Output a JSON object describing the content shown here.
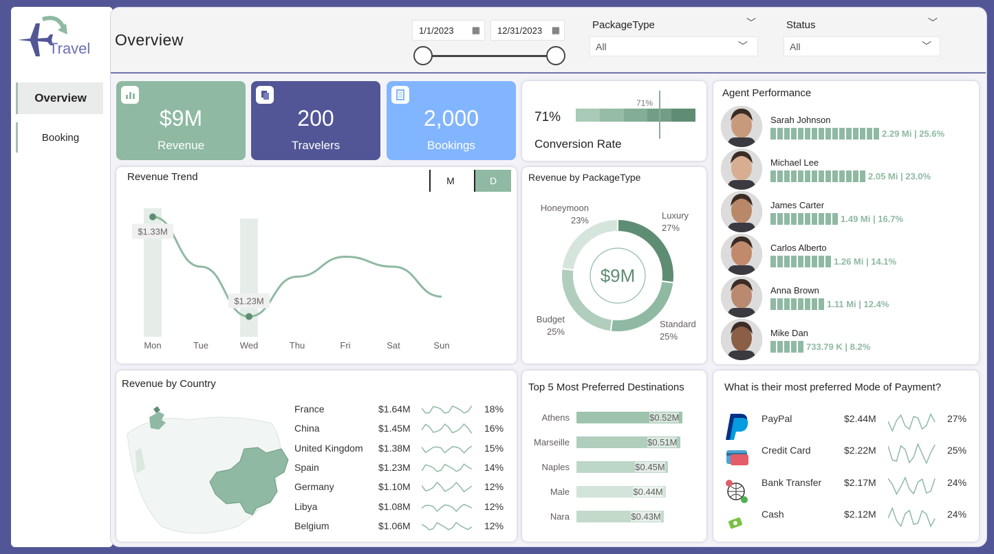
{
  "app": {
    "logo_text": "Travel",
    "page_title": "Overview"
  },
  "nav": [
    {
      "label": "Overview",
      "active": true
    },
    {
      "label": "Booking",
      "active": false
    }
  ],
  "filters": {
    "date_start": "1/1/2023",
    "date_end": "12/31/2023",
    "package_label": "PackageType",
    "package_value": "All",
    "status_label": "Status",
    "status_value": "All"
  },
  "kpis": [
    {
      "value": "$9M",
      "label": "Revenue",
      "color": "#8fb9a2"
    },
    {
      "value": "200",
      "label": "Travelers",
      "color": "#525696"
    },
    {
      "value": "2,000",
      "label": "Bookings",
      "color": "#82b5ff"
    }
  ],
  "conversion": {
    "value": "71%",
    "marker": "71%",
    "label": "Conversion Rate",
    "fraction": 0.71
  },
  "agent_performance": {
    "title": "Agent Performance",
    "agents": [
      {
        "name": "Sarah Johnson",
        "value": "2.29 Mi | 25.6%",
        "share": 25.6
      },
      {
        "name": "Michael Lee",
        "value": "2.05 Mi | 23.0%",
        "share": 23.0
      },
      {
        "name": "James Carter",
        "value": "1.49 Mi | 16.7%",
        "share": 16.7
      },
      {
        "name": "Carlos Alberto",
        "value": "1.26 Mi | 14.1%",
        "share": 14.1
      },
      {
        "name": "Anna Brown",
        "value": "1.11 Mi | 12.4%",
        "share": 12.4
      },
      {
        "name": "Mike Dan",
        "value": "733.79 K | 8.2%",
        "share": 8.2
      }
    ]
  },
  "revenue_trend": {
    "title": "Revenue Trend",
    "toggle": [
      "M",
      "D"
    ],
    "toggle_active": "D"
  },
  "revenue_by_package": {
    "title": "Revenue by PackageType",
    "center": "$9M",
    "slices": [
      {
        "name": "Luxury",
        "pct": "27%"
      },
      {
        "name": "Standard",
        "pct": "25%"
      },
      {
        "name": "Budget",
        "pct": "25%"
      },
      {
        "name": "Honeymoon",
        "pct": "23%"
      }
    ]
  },
  "revenue_by_country": {
    "title": "Revenue by Country",
    "rows": [
      {
        "country": "France",
        "revenue": "$1.64M",
        "pct": "18%"
      },
      {
        "country": "China",
        "revenue": "$1.45M",
        "pct": "16%"
      },
      {
        "country": "United Kingdom",
        "revenue": "$1.38M",
        "pct": "15%"
      },
      {
        "country": "Spain",
        "revenue": "$1.23M",
        "pct": "14%"
      },
      {
        "country": "Germany",
        "revenue": "$1.10M",
        "pct": "12%"
      },
      {
        "country": "Libya",
        "revenue": "$1.08M",
        "pct": "12%"
      },
      {
        "country": "Belgium",
        "revenue": "$1.06M",
        "pct": "12%"
      }
    ]
  },
  "top_destinations": {
    "title": "Top 5 Most Preferred Destinations",
    "rows": [
      {
        "city": "Athens",
        "value": "$0.52M",
        "num": 0.52
      },
      {
        "city": "Marseille",
        "value": "$0.51M",
        "num": 0.51
      },
      {
        "city": "Naples",
        "value": "$0.45M",
        "num": 0.45
      },
      {
        "city": "Male",
        "value": "$0.44M",
        "num": 0.44
      },
      {
        "city": "Nara",
        "value": "$0.43M",
        "num": 0.43
      }
    ]
  },
  "payment": {
    "title": "What is their most preferred Mode of Payment?",
    "rows": [
      {
        "method": "PayPal",
        "amount": "$2.44M",
        "pct": "27%",
        "icon": "paypal-icon"
      },
      {
        "method": "Credit Card",
        "amount": "$2.22M",
        "pct": "25%",
        "icon": "credit-card-icon"
      },
      {
        "method": "Bank Transfer",
        "amount": "$2.17M",
        "pct": "24%",
        "icon": "bank-transfer-icon"
      },
      {
        "method": "Cash",
        "amount": "$2.12M",
        "pct": "24%",
        "icon": "cash-icon"
      }
    ]
  },
  "chart_data": [
    {
      "type": "line",
      "title": "Revenue Trend",
      "categories": [
        "Mon",
        "Tue",
        "Wed",
        "Thu",
        "Fri",
        "Sat",
        "Sun"
      ],
      "values": [
        1.33,
        1.28,
        1.23,
        1.27,
        1.29,
        1.28,
        1.25
      ],
      "data_labels": {
        "Mon": "$1.33M",
        "Wed": "$1.23M"
      },
      "color": "#8fb9a2"
    },
    {
      "type": "pie",
      "title": "Revenue by PackageType",
      "categories": [
        "Luxury",
        "Standard",
        "Budget",
        "Honeymoon"
      ],
      "values": [
        27,
        25,
        25,
        23
      ],
      "colors": [
        "#5f8d73",
        "#8fb9a2",
        "#b1cdbd",
        "#d6e5dc"
      ]
    },
    {
      "type": "bar",
      "title": "Top 5 Most Preferred Destinations",
      "categories": [
        "Athens",
        "Marseille",
        "Naples",
        "Male",
        "Nara"
      ],
      "values": [
        0.52,
        0.51,
        0.45,
        0.44,
        0.43
      ]
    }
  ]
}
